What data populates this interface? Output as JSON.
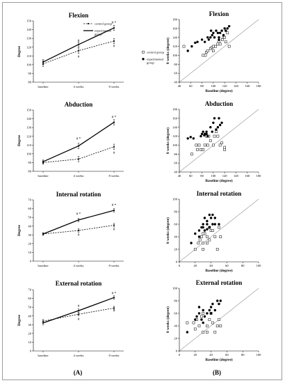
{
  "figure": {
    "column_labels": [
      "(A)",
      "(B)"
    ]
  },
  "chart_data": [
    {
      "type": "line",
      "title": "Flexion",
      "categories": [
        "baseline",
        "4 weeks",
        "8 weeks"
      ],
      "ylabel": "Degree",
      "ylim": [
        80,
        150
      ],
      "yticks": [
        80,
        90,
        100,
        110,
        120,
        130,
        140,
        150
      ],
      "series": [
        {
          "name": "control group",
          "style": "dashed",
          "values": [
            101,
            116,
            127
          ],
          "errors": [
            3,
            3,
            3
          ]
        },
        {
          "name": "experimental group",
          "style": "solid",
          "values": [
            103,
            123,
            142
          ],
          "errors": [
            3,
            3,
            3
          ]
        }
      ],
      "annotations": [
        {
          "text": "#",
          "category": "4 weeks",
          "value": 126
        },
        {
          "text": "#",
          "category": "4 weeks",
          "value": 108
        },
        {
          "text": "# *",
          "category": "8 weeks",
          "value": 147
        },
        {
          "text": "#",
          "category": "8 weeks",
          "value": 120
        }
      ],
      "legend": "top-right"
    },
    {
      "type": "scatter",
      "title": "Flexion",
      "xlabel": "Baseline (degree)",
      "ylabel": "8 weeks (degree)",
      "xlim": [
        40,
        180
      ],
      "ylim": [
        40,
        180
      ],
      "ticks": [
        40,
        60,
        80,
        100,
        120,
        140,
        160,
        180
      ],
      "identity_line": true,
      "series": [
        {
          "name": "control group",
          "marker": "open-square",
          "points": [
            [
              48,
              120
            ],
            [
              82,
              100
            ],
            [
              86,
              100
            ],
            [
              88,
              107
            ],
            [
              90,
              110
            ],
            [
              95,
              115
            ],
            [
              98,
              118
            ],
            [
              100,
              110
            ],
            [
              100,
              120
            ],
            [
              104,
              120
            ],
            [
              108,
              125
            ],
            [
              110,
              130
            ],
            [
              112,
              125
            ],
            [
              116,
              135
            ],
            [
              118,
              140
            ],
            [
              120,
              140
            ],
            [
              122,
              130
            ],
            [
              125,
              150
            ],
            [
              128,
              120
            ]
          ]
        },
        {
          "name": "experimental group",
          "marker": "filled-circle",
          "points": [
            [
              55,
              110
            ],
            [
              62,
              120
            ],
            [
              68,
              128
            ],
            [
              72,
              130
            ],
            [
              80,
              135
            ],
            [
              85,
              130
            ],
            [
              90,
              140
            ],
            [
              92,
              135
            ],
            [
              95,
              140
            ],
            [
              98,
              145
            ],
            [
              100,
              150
            ],
            [
              102,
              140
            ],
            [
              105,
              155
            ],
            [
              108,
              150
            ],
            [
              110,
              140
            ],
            [
              112,
              150
            ],
            [
              115,
              155
            ],
            [
              118,
              145
            ],
            [
              120,
              160
            ],
            [
              122,
              155
            ],
            [
              125,
              160
            ],
            [
              128,
              165
            ],
            [
              110,
              135
            ],
            [
              96,
              155
            ]
          ]
        }
      ],
      "legend": "left"
    },
    {
      "type": "line",
      "title": "Abduction",
      "categories": [
        "baseline",
        "4 weeks",
        "8 weeks"
      ],
      "ylabel": "Degree",
      "ylim": [
        80,
        150
      ],
      "yticks": [
        80,
        90,
        100,
        110,
        120,
        130,
        140,
        150
      ],
      "series": [
        {
          "name": "control group",
          "style": "dashed",
          "values": [
            90,
            94,
            108
          ],
          "errors": [
            2,
            3,
            3
          ]
        },
        {
          "name": "experimental group",
          "style": "solid",
          "values": [
            91,
            109,
            136
          ],
          "errors": [
            2,
            3,
            3
          ]
        }
      ],
      "annotations": [
        {
          "text": "# *",
          "category": "4 weeks",
          "value": 116
        },
        {
          "text": "# *",
          "category": "8 weeks",
          "value": 141
        },
        {
          "text": "#",
          "category": "8 weeks",
          "value": 100
        }
      ]
    },
    {
      "type": "scatter",
      "title": "Abduction",
      "xlabel": "Baseline (degree)",
      "ylabel": "8 weeks (degree)",
      "xlim": [
        40,
        180
      ],
      "ylim": [
        40,
        180
      ],
      "ticks": [
        40,
        60,
        80,
        100,
        120,
        140,
        160,
        180
      ],
      "identity_line": true,
      "series": [
        {
          "name": "control group",
          "marker": "open-square",
          "points": [
            [
              62,
              80
            ],
            [
              70,
              100
            ],
            [
              72,
              90
            ],
            [
              75,
              100
            ],
            [
              78,
              90
            ],
            [
              82,
              90
            ],
            [
              85,
              100
            ],
            [
              88,
              120
            ],
            [
              90,
              100
            ],
            [
              92,
              120
            ],
            [
              95,
              110
            ],
            [
              100,
              100
            ],
            [
              105,
              130
            ],
            [
              108,
              120
            ],
            [
              112,
              100
            ],
            [
              115,
              105
            ],
            [
              120,
              90
            ],
            [
              120,
              95
            ],
            [
              102,
              120
            ]
          ]
        },
        {
          "name": "experimental group",
          "marker": "filled-circle",
          "points": [
            [
              55,
              115
            ],
            [
              60,
              118
            ],
            [
              65,
              115
            ],
            [
              78,
              120
            ],
            [
              80,
              125
            ],
            [
              82,
              130
            ],
            [
              85,
              125
            ],
            [
              88,
              130
            ],
            [
              90,
              120
            ],
            [
              95,
              140
            ],
            [
              98,
              130
            ],
            [
              100,
              150
            ],
            [
              102,
              160
            ],
            [
              105,
              135
            ],
            [
              108,
              140
            ],
            [
              110,
              160
            ],
            [
              112,
              145
            ],
            [
              115,
              150
            ],
            [
              88,
              125
            ],
            [
              84,
              122
            ]
          ]
        }
      ]
    },
    {
      "type": "line",
      "title": "Internal rotation",
      "categories": [
        "baseline",
        "4 weeks",
        "8 weeks"
      ],
      "ylabel": "Degree",
      "ylim": [
        0,
        70
      ],
      "yticks": [
        0,
        10,
        20,
        30,
        40,
        50,
        60,
        70
      ],
      "series": [
        {
          "name": "control group",
          "style": "dashed",
          "values": [
            31,
            35,
            41
          ],
          "errors": [
            1.5,
            2,
            2
          ]
        },
        {
          "name": "experimental group",
          "style": "solid",
          "values": [
            31,
            47,
            58
          ],
          "errors": [
            1.5,
            2,
            2
          ]
        }
      ],
      "annotations": [
        {
          "text": "# *",
          "category": "4 weeks",
          "value": 53
        },
        {
          "text": "#",
          "category": "4 weeks",
          "value": 29
        },
        {
          "text": "# *",
          "category": "8 weeks",
          "value": 63
        },
        {
          "text": "#",
          "category": "8 weeks",
          "value": 35
        }
      ]
    },
    {
      "type": "scatter",
      "title": "Internal rotation",
      "xlabel": "Baseline (degree)",
      "ylabel": "8 weeks (degree)",
      "xlim": [
        0,
        100
      ],
      "ylim": [
        0,
        100
      ],
      "ticks": [
        0,
        20,
        40,
        60,
        80,
        100
      ],
      "identity_line": true,
      "series": [
        {
          "name": "control group",
          "marker": "open-square",
          "points": [
            [
              20,
              20
            ],
            [
              24,
              30
            ],
            [
              26,
              35
            ],
            [
              28,
              40
            ],
            [
              30,
              30
            ],
            [
              30,
              20
            ],
            [
              32,
              45
            ],
            [
              35,
              40
            ],
            [
              35,
              30
            ],
            [
              38,
              55
            ],
            [
              40,
              50
            ],
            [
              42,
              50
            ],
            [
              45,
              40
            ],
            [
              48,
              20
            ],
            [
              50,
              55
            ],
            [
              52,
              40
            ],
            [
              38,
              35
            ],
            [
              30,
              45
            ]
          ]
        },
        {
          "name": "experimental group",
          "marker": "filled-circle",
          "points": [
            [
              15,
              30
            ],
            [
              20,
              45
            ],
            [
              25,
              50
            ],
            [
              28,
              55
            ],
            [
              30,
              55
            ],
            [
              30,
              60
            ],
            [
              32,
              50
            ],
            [
              32,
              70
            ],
            [
              35,
              60
            ],
            [
              35,
              65
            ],
            [
              38,
              75
            ],
            [
              38,
              55
            ],
            [
              40,
              70
            ],
            [
              42,
              60
            ],
            [
              42,
              75
            ],
            [
              45,
              60
            ],
            [
              45,
              70
            ],
            [
              50,
              60
            ],
            [
              25,
              40
            ],
            [
              35,
              52
            ]
          ]
        }
      ]
    },
    {
      "type": "line",
      "title": "External rotation",
      "categories": [
        "baseline",
        "4 weeks",
        "8 weeks"
      ],
      "ylabel": "Degree",
      "ylim": [
        0,
        70
      ],
      "yticks": [
        0,
        10,
        20,
        30,
        40,
        50,
        60,
        70
      ],
      "series": [
        {
          "name": "control group",
          "style": "dashed",
          "values": [
            34,
            42,
            49
          ],
          "errors": [
            2,
            2,
            2
          ]
        },
        {
          "name": "experimental group",
          "style": "solid",
          "values": [
            32,
            46,
            61
          ],
          "errors": [
            2,
            2,
            2
          ]
        }
      ],
      "annotations": [
        {
          "text": "#",
          "category": "4 weeks",
          "value": 50
        },
        {
          "text": "#",
          "category": "4 weeks",
          "value": 35
        },
        {
          "text": "# *",
          "category": "8 weeks",
          "value": 65
        },
        {
          "text": "#",
          "category": "8 weeks",
          "value": 45
        }
      ]
    },
    {
      "type": "scatter",
      "title": "External rotation",
      "xlabel": "Baseline (degree)",
      "ylabel": "8 weeks (degree)",
      "xlim": [
        0,
        100
      ],
      "ylim": [
        0,
        100
      ],
      "ticks": [
        0,
        20,
        40,
        60,
        80,
        100
      ],
      "identity_line": true,
      "series": [
        {
          "name": "control group",
          "marker": "open-square",
          "points": [
            [
              10,
              45
            ],
            [
              18,
              45
            ],
            [
              22,
              50
            ],
            [
              25,
              40
            ],
            [
              28,
              55
            ],
            [
              30,
              60
            ],
            [
              30,
              30
            ],
            [
              35,
              40
            ],
            [
              38,
              50
            ],
            [
              40,
              60
            ],
            [
              42,
              45
            ],
            [
              45,
              30
            ],
            [
              48,
              40
            ],
            [
              50,
              50
            ],
            [
              52,
              40
            ],
            [
              35,
              30
            ],
            [
              20,
              35
            ]
          ]
        },
        {
          "name": "experimental group",
          "marker": "filled-circle",
          "points": [
            [
              10,
              30
            ],
            [
              20,
              50
            ],
            [
              22,
              55
            ],
            [
              25,
              60
            ],
            [
              25,
              70
            ],
            [
              28,
              50
            ],
            [
              30,
              65
            ],
            [
              32,
              55
            ],
            [
              35,
              60
            ],
            [
              38,
              65
            ],
            [
              40,
              70
            ],
            [
              40,
              60
            ],
            [
              42,
              75
            ],
            [
              45,
              65
            ],
            [
              48,
              80
            ],
            [
              50,
              75
            ],
            [
              52,
              80
            ],
            [
              30,
              45
            ]
          ]
        }
      ]
    }
  ]
}
